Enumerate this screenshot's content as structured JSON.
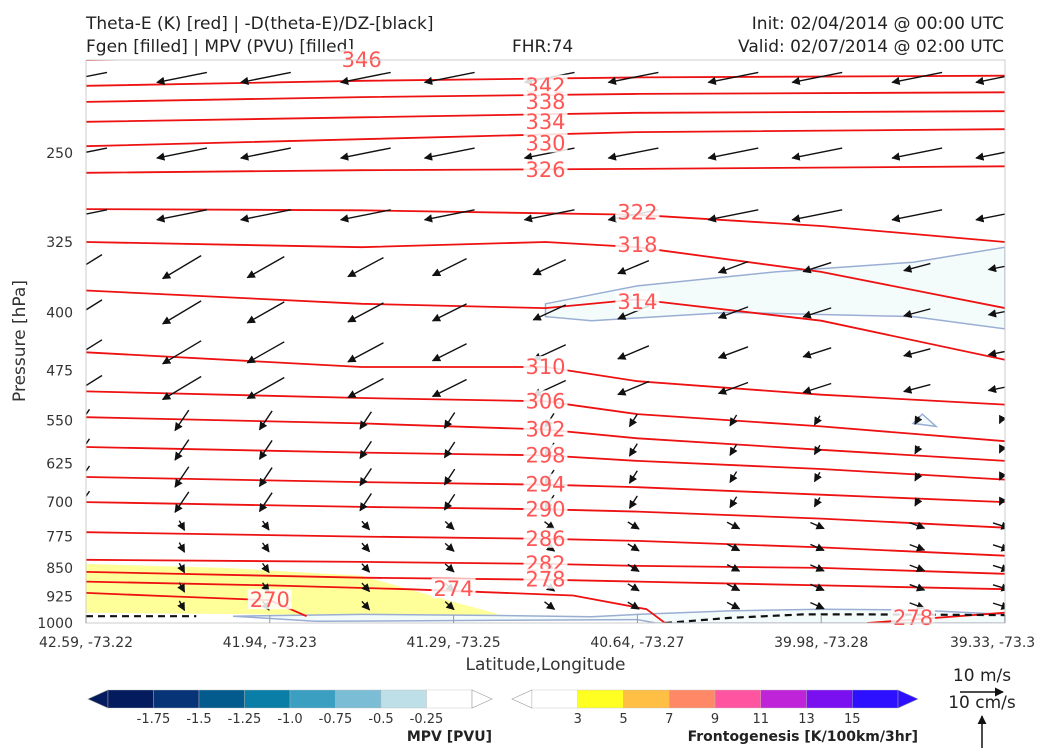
{
  "header": {
    "title_line1": "Theta-E (K) [red] | -D(theta-E)/DZ-[black]",
    "title_line2": "Fgen [filled] | MPV (PVU) [filled]",
    "fhr": "FHR:74",
    "init": "Init: 02/04/2014 @ 00:00 UTC",
    "valid": "Valid: 02/07/2014 @ 02:00 UTC"
  },
  "chart_data": {
    "type": "cross-section",
    "xlabel": "Latitude,Longitude",
    "ylabel": "Pressure [hPa]",
    "x_ticks": [
      "42.59, -73.22",
      "41.94, -73.23",
      "41.29, -73.25",
      "40.64, -73.27",
      "39.98, -73.28",
      "39.33, -73.3"
    ],
    "y_ticks": [
      250,
      325,
      400,
      475,
      550,
      625,
      700,
      775,
      850,
      925,
      1000
    ],
    "ylim": [
      1000,
      190
    ],
    "y_scale": "log-pressure",
    "theta_e_contours": [
      {
        "label": 346,
        "points": [
          [
            0,
            190
          ],
          [
            0.3,
            188
          ],
          [
            0.6,
            186
          ],
          [
            1,
            185
          ]
        ]
      },
      {
        "label": 342,
        "points": [
          [
            0,
            205
          ],
          [
            0.3,
            202
          ],
          [
            0.6,
            200
          ],
          [
            1,
            199
          ]
        ]
      },
      {
        "label": 338,
        "points": [
          [
            0,
            215
          ],
          [
            0.3,
            212
          ],
          [
            0.6,
            210
          ],
          [
            1,
            209
          ]
        ]
      },
      {
        "label": 334,
        "points": [
          [
            0,
            228
          ],
          [
            0.3,
            225
          ],
          [
            0.6,
            222
          ],
          [
            1,
            221
          ]
        ]
      },
      {
        "label": 330,
        "points": [
          [
            0,
            245
          ],
          [
            0.3,
            240
          ],
          [
            0.6,
            235
          ],
          [
            1,
            233
          ]
        ]
      },
      {
        "label": 326,
        "points": [
          [
            0,
            265
          ],
          [
            0.3,
            263
          ],
          [
            0.6,
            262
          ],
          [
            1,
            260
          ]
        ]
      },
      {
        "label": 322,
        "points": [
          [
            0,
            295
          ],
          [
            0.3,
            296
          ],
          [
            0.6,
            300
          ],
          [
            0.8,
            310
          ],
          [
            1,
            325
          ]
        ]
      },
      {
        "label": 318,
        "points": [
          [
            0,
            325
          ],
          [
            0.3,
            330
          ],
          [
            0.5,
            325
          ],
          [
            0.6,
            330
          ],
          [
            0.8,
            355
          ],
          [
            1,
            395
          ]
        ]
      },
      {
        "label": 314,
        "points": [
          [
            0,
            375
          ],
          [
            0.3,
            390
          ],
          [
            0.5,
            395
          ],
          [
            0.6,
            385
          ],
          [
            0.8,
            410
          ],
          [
            1,
            460
          ]
        ]
      },
      {
        "label": 310,
        "points": [
          [
            0,
            450
          ],
          [
            0.3,
            470
          ],
          [
            0.5,
            470
          ],
          [
            0.6,
            490
          ],
          [
            0.8,
            510
          ],
          [
            1,
            525
          ]
        ]
      },
      {
        "label": 306,
        "points": [
          [
            0,
            505
          ],
          [
            0.3,
            515
          ],
          [
            0.5,
            520
          ],
          [
            0.6,
            540
          ],
          [
            0.8,
            560
          ],
          [
            1,
            585
          ]
        ]
      },
      {
        "label": 302,
        "points": [
          [
            0,
            545
          ],
          [
            0.3,
            555
          ],
          [
            0.5,
            565
          ],
          [
            0.6,
            580
          ],
          [
            0.8,
            600
          ],
          [
            1,
            620
          ]
        ]
      },
      {
        "label": 298,
        "points": [
          [
            0,
            595
          ],
          [
            0.3,
            605
          ],
          [
            0.5,
            610
          ],
          [
            0.6,
            620
          ],
          [
            0.8,
            635
          ],
          [
            1,
            655
          ]
        ]
      },
      {
        "label": 294,
        "points": [
          [
            0,
            650
          ],
          [
            0.3,
            660
          ],
          [
            0.5,
            665
          ],
          [
            0.6,
            670
          ],
          [
            0.8,
            685
          ],
          [
            1,
            700
          ]
        ]
      },
      {
        "label": 290,
        "points": [
          [
            0,
            700
          ],
          [
            0.3,
            710
          ],
          [
            0.5,
            715
          ],
          [
            0.6,
            720
          ],
          [
            0.8,
            735
          ],
          [
            1,
            755
          ]
        ]
      },
      {
        "label": 286,
        "points": [
          [
            0,
            765
          ],
          [
            0.3,
            775
          ],
          [
            0.5,
            780
          ],
          [
            0.6,
            785
          ],
          [
            0.8,
            800
          ],
          [
            1,
            820
          ]
        ]
      },
      {
        "label": 282,
        "points": [
          [
            0,
            830
          ],
          [
            0.3,
            835
          ],
          [
            0.5,
            840
          ],
          [
            0.6,
            845
          ],
          [
            0.8,
            850
          ],
          [
            1,
            865
          ]
        ]
      },
      {
        "label": 278,
        "points": [
          [
            0,
            885
          ],
          [
            0.2,
            895
          ],
          [
            0.35,
            905
          ],
          [
            0.53,
            922
          ],
          [
            0.61,
            960
          ],
          [
            0.63,
            1000
          ]
        ]
      },
      {
        "label": 274,
        "points": [
          [
            0,
            860
          ],
          [
            0.3,
            875
          ],
          [
            0.5,
            880
          ],
          [
            0.6,
            885
          ],
          [
            0.8,
            895
          ],
          [
            1,
            905
          ]
        ]
      },
      {
        "label": 270,
        "points": [
          [
            0,
            915
          ],
          [
            0.1,
            925
          ],
          [
            0.2,
            935
          ],
          [
            0.24,
            980
          ]
        ]
      },
      {
        "label": 278,
        "points": [
          [
            0.85,
            1000
          ],
          [
            1,
            970
          ]
        ]
      }
    ],
    "theta_e_labels": [
      {
        "text": "346",
        "x": 0.3,
        "p": 190
      },
      {
        "text": "342",
        "x": 0.5,
        "p": 205
      },
      {
        "text": "338",
        "x": 0.5,
        "p": 215
      },
      {
        "text": "334",
        "x": 0.5,
        "p": 228
      },
      {
        "text": "330",
        "x": 0.5,
        "p": 243
      },
      {
        "text": "326",
        "x": 0.5,
        "p": 263
      },
      {
        "text": "322",
        "x": 0.6,
        "p": 298
      },
      {
        "text": "318",
        "x": 0.6,
        "p": 328
      },
      {
        "text": "314",
        "x": 0.6,
        "p": 388
      },
      {
        "text": "310",
        "x": 0.5,
        "p": 470
      },
      {
        "text": "306",
        "x": 0.5,
        "p": 520
      },
      {
        "text": "302",
        "x": 0.5,
        "p": 565
      },
      {
        "text": "298",
        "x": 0.5,
        "p": 610
      },
      {
        "text": "294",
        "x": 0.5,
        "p": 665
      },
      {
        "text": "290",
        "x": 0.5,
        "p": 715
      },
      {
        "text": "286",
        "x": 0.5,
        "p": 780
      },
      {
        "text": "282",
        "x": 0.5,
        "p": 840
      },
      {
        "text": "278",
        "x": 0.5,
        "p": 880
      },
      {
        "text": "274",
        "x": 0.4,
        "p": 905
      },
      {
        "text": "270",
        "x": 0.2,
        "p": 935
      },
      {
        "text": "278",
        "x": 0.9,
        "p": 985
      }
    ],
    "fgen_regions": [
      {
        "color": "#ffff99",
        "points": [
          [
            0,
            840
          ],
          [
            0.15,
            850
          ],
          [
            0.3,
            870
          ],
          [
            0.4,
            940
          ],
          [
            0.45,
            975
          ],
          [
            0.4,
            978
          ],
          [
            0.2,
            975
          ],
          [
            0,
            970
          ]
        ]
      }
    ],
    "mpv_regions": [
      {
        "color": "#f4fbfb",
        "edge": "#9aaed4",
        "points": [
          [
            0.5,
            390
          ],
          [
            0.6,
            370
          ],
          [
            0.75,
            355
          ],
          [
            0.9,
            345
          ],
          [
            1,
            330
          ],
          [
            1,
            420
          ],
          [
            0.9,
            405
          ],
          [
            0.7,
            400
          ],
          [
            0.55,
            410
          ],
          [
            0.5,
            405
          ]
        ]
      },
      {
        "color": "#f4fbfb",
        "edge": "#9aaed4",
        "points": [
          [
            0.16,
            980
          ],
          [
            0.3,
            975
          ],
          [
            0.45,
            978
          ],
          [
            0.55,
            982
          ],
          [
            0.6,
            975
          ],
          [
            0.7,
            965
          ],
          [
            0.8,
            960
          ],
          [
            0.9,
            962
          ],
          [
            1,
            975
          ],
          [
            1,
            1000
          ],
          [
            0.62,
            1000
          ],
          [
            0.6,
            990
          ],
          [
            0.45,
            992
          ],
          [
            0.25,
            995
          ]
        ]
      },
      {
        "color": "#f4fbfb",
        "edge": "#9aaed4",
        "points": [
          [
            0.9,
            555
          ],
          [
            0.91,
            540
          ],
          [
            0.925,
            560
          ]
        ]
      }
    ],
    "dtheta_contours": [
      {
        "style": "dashed",
        "points": [
          [
            0,
            980
          ],
          [
            0.12,
            980
          ]
        ]
      },
      {
        "style": "dashed",
        "points": [
          [
            0.63,
            1000
          ],
          [
            0.7,
            985
          ],
          [
            0.78,
            975
          ],
          [
            0.85,
            975
          ],
          [
            1,
            977
          ]
        ]
      }
    ],
    "wind_vectors": {
      "levels": [
        200,
        250,
        300,
        350,
        400,
        450,
        500,
        550,
        600,
        650,
        700,
        750,
        800,
        850,
        900,
        950
      ],
      "x_positions": [
        0,
        0.1,
        0.2,
        0.3,
        0.4,
        0.5,
        0.6,
        0.7,
        0.8,
        0.9,
        1.0
      ]
    }
  },
  "colorbar_mpv": {
    "label": "MPV [PVU]",
    "ticks": [
      "-1.75",
      "-1.5",
      "-1.25",
      "-1.0",
      "-0.75",
      "-0.5",
      "-0.25"
    ],
    "colors": [
      "#041b5e",
      "#063476",
      "#035a8c",
      "#0a7ea6",
      "#3b9fc2",
      "#7bbdd4",
      "#bfdfe8",
      "#ffffff"
    ]
  },
  "colorbar_fgen": {
    "label": "Frontogenesis [K/100km/3hr]",
    "ticks": [
      "3",
      "5",
      "7",
      "9",
      "11",
      "13",
      "15"
    ],
    "colors": [
      "#ffffff",
      "#ffff22",
      "#ffbe44",
      "#ff8866",
      "#ff55a0",
      "#c024d8",
      "#7a10f0",
      "#2c10ff"
    ]
  },
  "reference_vectors": {
    "top": "10 m/s",
    "bottom": "10 cm/s"
  }
}
